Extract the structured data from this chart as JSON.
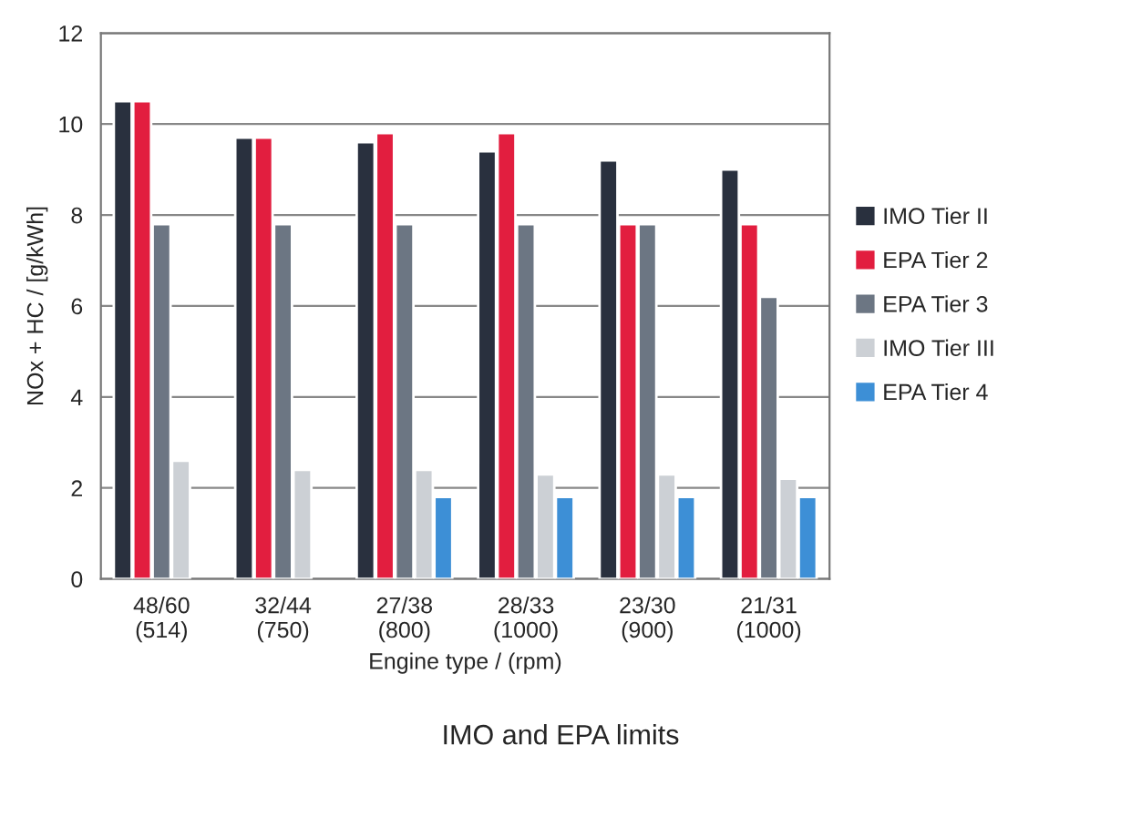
{
  "chart_data": {
    "type": "bar",
    "xlabel": "Engine type / (rpm)",
    "ylabel": "NOx + HC / [g/kWh]",
    "categories": [
      "48/60\n(514)",
      "32/44\n(750)",
      "27/38\n(800)",
      "28/33\n(1000)",
      "23/30\n(900)",
      "21/31\n(1000)"
    ],
    "series": [
      {
        "name": "IMO Tier II",
        "color": "#29303e",
        "values": [
          10.5,
          9.7,
          9.6,
          9.4,
          9.2,
          9.0
        ]
      },
      {
        "name": "EPA Tier 2",
        "color": "#e21e3f",
        "values": [
          10.5,
          9.7,
          9.8,
          9.8,
          7.8,
          7.8
        ]
      },
      {
        "name": "EPA Tier 3",
        "color": "#6c7683",
        "values": [
          7.8,
          7.8,
          7.8,
          7.8,
          7.8,
          6.2
        ]
      },
      {
        "name": "IMO Tier III",
        "color": "#ccd0d5",
        "values": [
          2.6,
          2.4,
          2.4,
          2.3,
          2.3,
          2.2
        ]
      },
      {
        "name": "EPA Tier 4",
        "color": "#3d8fd6",
        "values": [
          null,
          null,
          1.8,
          1.8,
          1.8,
          1.8
        ]
      }
    ],
    "ylim": [
      0,
      12
    ],
    "yticks": [
      0,
      2,
      4,
      6,
      8,
      10,
      12
    ],
    "grid": "y",
    "legend": "right",
    "annotations": [
      "IMO and EPA limits"
    ]
  }
}
